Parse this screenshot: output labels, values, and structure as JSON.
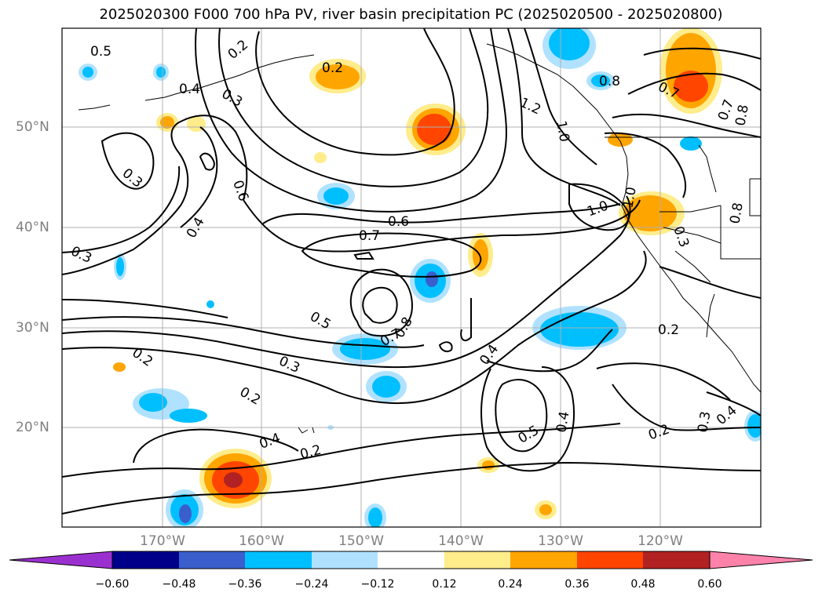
{
  "title": "2025020300 F000 700 hPa PV, river basin precipitation PC (2025020500 - 2025020800)",
  "lat_labels": [
    "50°N",
    "40°N",
    "30°N",
    "20°N"
  ],
  "lon_labels": [
    "170°W",
    "160°W",
    "150°W",
    "140°W",
    "130°W",
    "120°W"
  ],
  "colorbar": {
    "ticks": [
      "−0.60",
      "−0.48",
      "−0.36",
      "−0.24",
      "−0.12",
      "0.12",
      "0.24",
      "0.36",
      "0.48",
      "0.60"
    ],
    "colors": [
      "#9b30d0",
      "#00008b",
      "#3a5fcd",
      "#00bfff",
      "#b0e2ff",
      "#ffffff",
      "#ffec8b",
      "#ffa500",
      "#ff4500",
      "#b22222",
      "#ff82ab"
    ]
  },
  "map": {
    "extent": {
      "lon": [
        -180,
        -110
      ],
      "lat": [
        10,
        60
      ]
    },
    "contour_labels": [
      "0.5",
      "0.2",
      "0.2",
      "0.4",
      "0.3",
      "0.3",
      "0.6",
      "0.4",
      "0.3",
      "0.7",
      "0.6",
      "0.5",
      "0.8",
      "0.7",
      "0.3",
      "0.2",
      "0.2",
      "0.4",
      "0.2",
      "0.4",
      "0.5",
      "0.4",
      "0.2",
      "0.3",
      "0.4",
      "0.2",
      "1.0",
      "1.2",
      "1.0",
      "1.0",
      "0.8",
      "0.7",
      "0.7",
      "0.8",
      "0.8",
      "0.3"
    ]
  }
}
